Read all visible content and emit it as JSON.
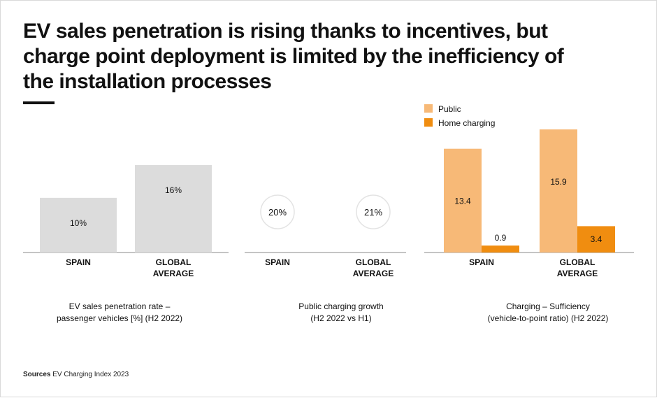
{
  "title": "EV sales penetration is rising thanks to incentives, but\ncharge point deployment is limited by the inefficiency of\nthe installation processes",
  "sources": {
    "label": "Sources",
    "text": "EV Charging Index 2023"
  },
  "colors": {
    "gray_bar": "#dcdcdc",
    "public": "#f7b977",
    "home": "#f08d10",
    "axis": "#888888",
    "circle": "#e3e3e3"
  },
  "chart_data": [
    {
      "type": "bar",
      "categories": [
        "SPAIN",
        "GLOBAL\nAVERAGE"
      ],
      "values": [
        10,
        16
      ],
      "value_labels": [
        "10%",
        "16%"
      ],
      "caption": "EV sales penetration rate –\npassenger vehicles [%] (H2 2022)",
      "ylim": [
        0,
        16
      ]
    },
    {
      "type": "table",
      "categories": [
        "SPAIN",
        "GLOBAL\nAVERAGE"
      ],
      "values": [
        20,
        21
      ],
      "value_labels": [
        "20%",
        "21%"
      ],
      "caption": "Public charging growth\n(H2 2022 vs H1)"
    },
    {
      "type": "bar",
      "categories": [
        "SPAIN",
        "GLOBAL\nAVERAGE"
      ],
      "series": [
        {
          "name": "Public",
          "values": [
            13.4,
            15.9
          ],
          "value_labels": [
            "13.4",
            "15.9"
          ]
        },
        {
          "name": "Home charging",
          "values": [
            0.9,
            3.4
          ],
          "value_labels": [
            "0.9",
            "3.4"
          ]
        }
      ],
      "caption": "Charging – Sufficiency\n(vehicle-to-point ratio) (H2 2022)",
      "legend": "top-left",
      "ylim": [
        0,
        15.9
      ]
    }
  ]
}
